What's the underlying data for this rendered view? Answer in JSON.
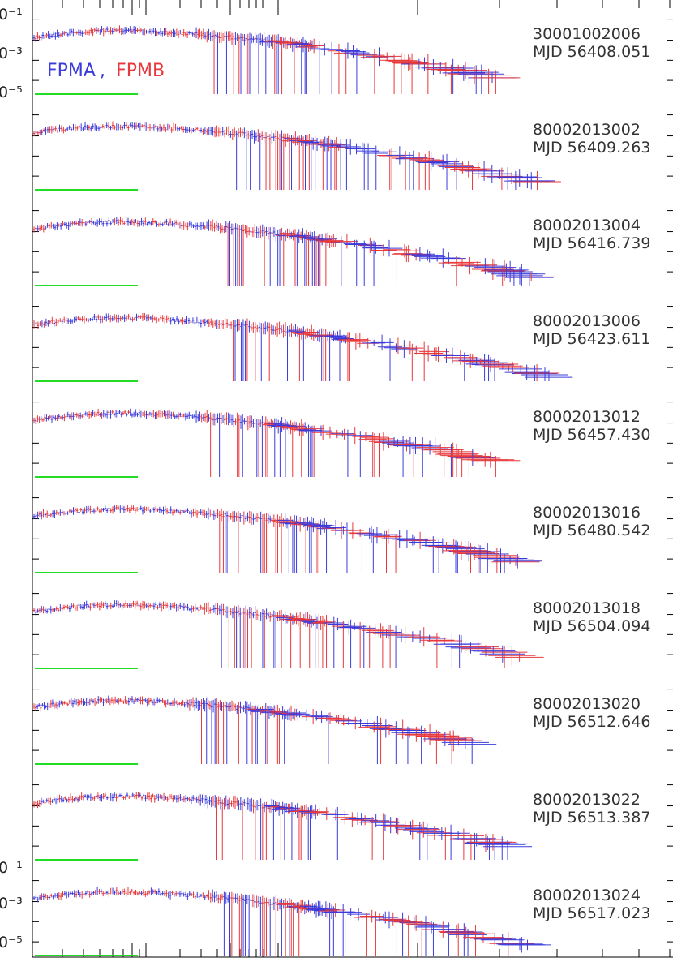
{
  "chart_data": {
    "type": "scatter",
    "title": "",
    "xlabel": "",
    "ylabel": "",
    "xscale": "log",
    "yscale": "log",
    "ylim": [
      1e-06,
      1
    ],
    "y_tick_labels": [
      "0⁻¹",
      "0⁻³",
      "0⁻⁵"
    ],
    "legend": {
      "entries": [
        {
          "name": "FPMA",
          "color": "#3b3bdc"
        },
        {
          "name": "FPMB",
          "color": "#e8383b"
        }
      ],
      "separator": ",",
      "placement": "top-left"
    },
    "band_color": "#22dd22",
    "series_colors": {
      "FPMA": "#3b3bdc",
      "FPMB": "#e8383b"
    },
    "panels": [
      {
        "obsid": "30001002006",
        "mjd_label": "MJD 56408.051",
        "noise_end": 0.78
      },
      {
        "obsid": "80002013002",
        "mjd_label": "MJD 56409.263",
        "noise_end": 0.86
      },
      {
        "obsid": "80002013004",
        "mjd_label": "MJD 56416.739",
        "noise_end": 0.84
      },
      {
        "obsid": "80002013006",
        "mjd_label": "MJD 56423.611",
        "noise_end": 0.88
      },
      {
        "obsid": "80002013012",
        "mjd_label": "MJD 56457.430",
        "noise_end": 0.78
      },
      {
        "obsid": "80002013016",
        "mjd_label": "MJD 56480.542",
        "noise_end": 0.82
      },
      {
        "obsid": "80002013018",
        "mjd_label": "MJD 56504.094",
        "noise_end": 0.82
      },
      {
        "obsid": "80002013020",
        "mjd_label": "MJD 56512.646",
        "noise_end": 0.74
      },
      {
        "obsid": "80002013022",
        "mjd_label": "MJD 56513.387",
        "noise_end": 0.8
      },
      {
        "obsid": "80002013024",
        "mjd_label": "MJD 56517.023",
        "noise_end": 0.84
      }
    ]
  }
}
